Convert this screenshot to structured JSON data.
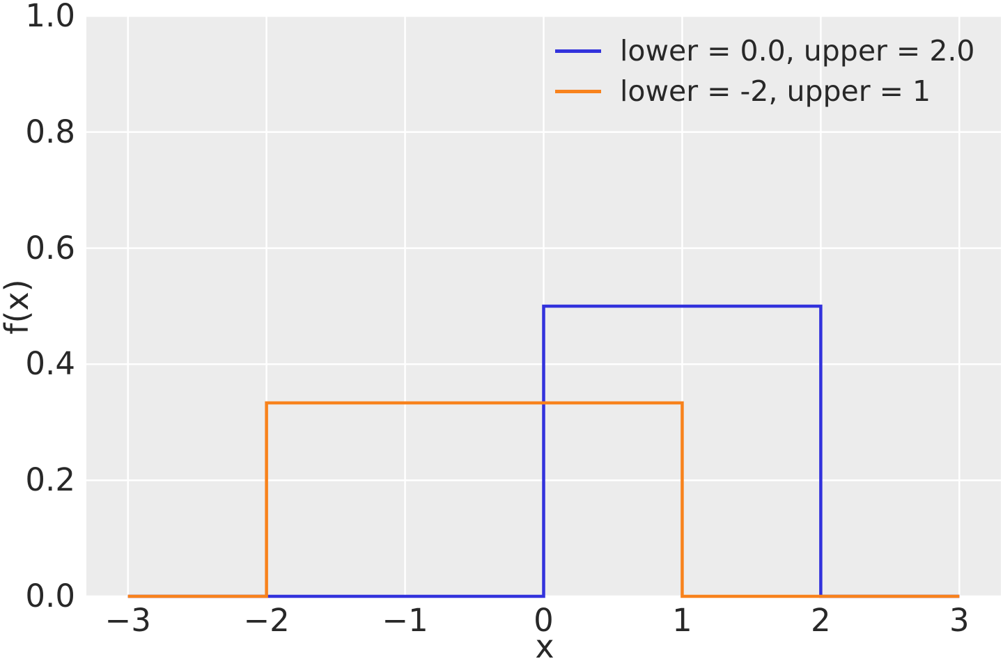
{
  "chart_data": {
    "type": "line",
    "title": "",
    "xlabel": "x",
    "ylabel": "f(x)",
    "xlim": [
      -3.3,
      3.3
    ],
    "ylim": [
      0,
      1.0
    ],
    "grid": true,
    "legend_position": "upper right",
    "x_ticks": [
      -3,
      -2,
      -1,
      0,
      1,
      2,
      3
    ],
    "x_tick_labels": [
      "−3",
      "−2",
      "−1",
      "0",
      "1",
      "2",
      "3"
    ],
    "y_ticks": [
      0,
      0.2,
      0.4,
      0.6,
      0.8,
      1.0
    ],
    "y_tick_labels": [
      "0.0",
      "0.2",
      "0.4",
      "0.6",
      "0.8",
      "1.0"
    ],
    "series": [
      {
        "name": "lower = 0.0, upper = 2.0",
        "color": "#3232dc",
        "distribution": "uniform",
        "lower": 0.0,
        "upper": 2.0,
        "density": 0.5,
        "points": [
          [
            -3,
            0
          ],
          [
            0,
            0
          ],
          [
            0,
            0.5
          ],
          [
            2,
            0.5
          ],
          [
            2,
            0
          ],
          [
            3,
            0
          ]
        ]
      },
      {
        "name": "lower = -2, upper = 1",
        "color": "#f8821c",
        "distribution": "uniform",
        "lower": -2,
        "upper": 1,
        "density": 0.3333,
        "points": [
          [
            -3,
            0
          ],
          [
            -2,
            0
          ],
          [
            -2,
            0.3333
          ],
          [
            1,
            0.3333
          ],
          [
            1,
            0
          ],
          [
            3,
            0
          ]
        ]
      }
    ],
    "styles": {
      "figure_background": "#ffffff",
      "plot_background": "#ececec",
      "grid_color": "#ffffff",
      "text_color": "#282828"
    }
  }
}
